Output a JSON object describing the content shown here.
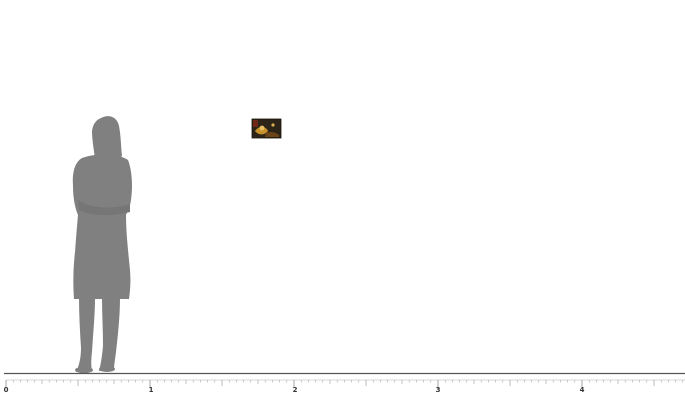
{
  "scale": {
    "labels": [
      "0",
      "1",
      "2",
      "3",
      "4"
    ]
  },
  "figure": {
    "icon": "woman-silhouette-icon",
    "color": "#808080"
  },
  "artwork": {
    "icon": "painting-thumbnail",
    "colors": [
      "#2c2418",
      "#c8902a",
      "#e6c060",
      "#8a2a1a"
    ]
  },
  "colors": {
    "ground_line": "#555555",
    "ruler": "#9a9a9a"
  }
}
